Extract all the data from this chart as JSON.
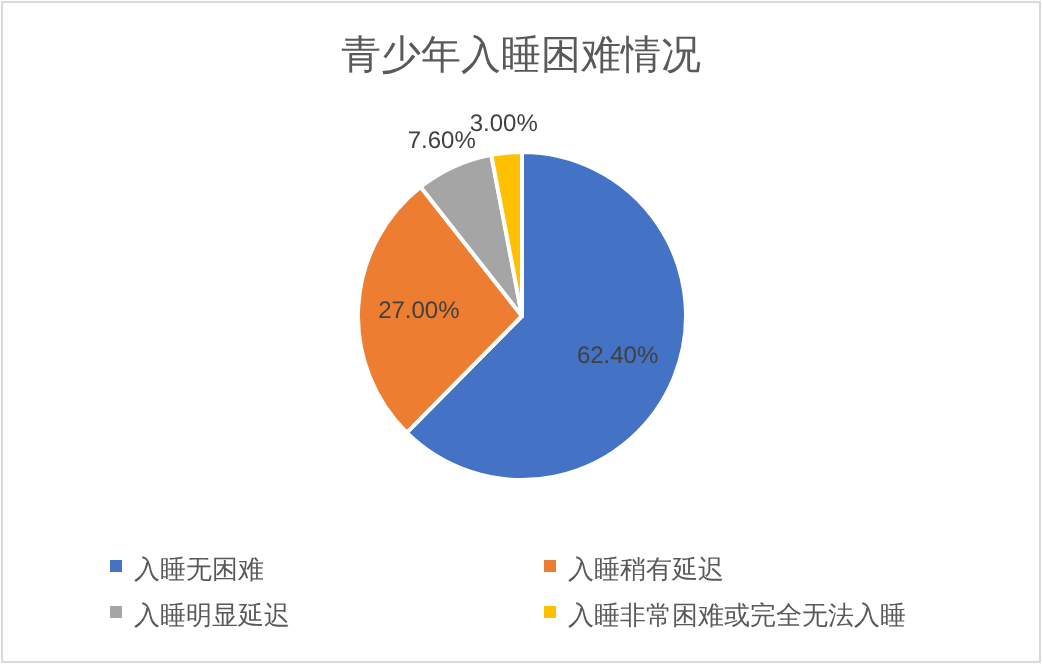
{
  "chart_data": {
    "type": "pie",
    "title": "青少年入睡困难情况",
    "categories": [
      "入睡无困难",
      "入睡稍有延迟",
      "入睡明显延迟",
      "入睡非常困难或完全无法入睡"
    ],
    "values": [
      62.4,
      27.0,
      7.6,
      3.0
    ],
    "value_labels": [
      "62.40%",
      "27.00%",
      "7.60%",
      "3.00%"
    ],
    "colors": [
      "#4472c4",
      "#ed7d31",
      "#a5a5a5",
      "#ffc000"
    ],
    "legend": "bottom"
  }
}
